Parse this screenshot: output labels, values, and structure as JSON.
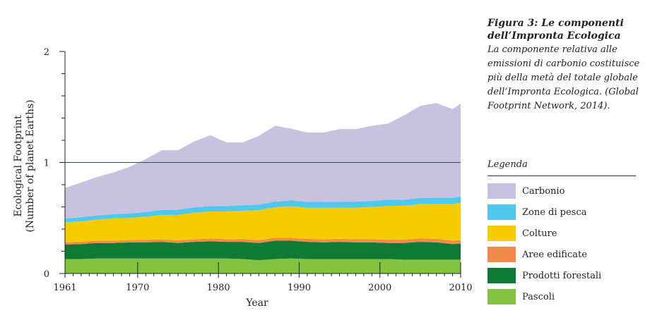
{
  "caption": {
    "title": "Figura 3: Le componenti dell’Impronta Ecologica",
    "text": "La componente relativa alle emissioni di carbonio costituisce più della metà del totale globale dell’Impronta Ecologica. (Global Footprint Network, 2014)."
  },
  "legend": {
    "title": "Legenda",
    "items": [
      {
        "label": "Carbonio",
        "color": "#c6c2e0"
      },
      {
        "label": "Zone di pesca",
        "color": "#4ec8ee"
      },
      {
        "label": "Colture",
        "color": "#f4cc00"
      },
      {
        "label": "Aree edificate",
        "color": "#f28a4c"
      },
      {
        "label": "Prodotti forestali",
        "color": "#0f7a35"
      },
      {
        "label": "Pascoli",
        "color": "#84c341"
      }
    ]
  },
  "chart_data": {
    "type": "area",
    "stacked": true,
    "xlabel": "Year",
    "ylabel": "Ecological Footprint (Number of planet Earths)",
    "xlim": [
      1961,
      2010
    ],
    "ylim": [
      0,
      2
    ],
    "x_ticks": [
      1961,
      1970,
      1980,
      1990,
      2000,
      2010
    ],
    "y_ticks": [
      0,
      1,
      2
    ],
    "reference_line": 1,
    "reference_line_color": "#1c5e3c",
    "x": [
      1961,
      1963,
      1965,
      1967,
      1969,
      1971,
      1973,
      1975,
      1977,
      1979,
      1981,
      1983,
      1985,
      1987,
      1989,
      1991,
      1993,
      1995,
      1997,
      1999,
      2001,
      2003,
      2005,
      2007,
      2009,
      2010
    ],
    "series": [
      {
        "name": "Pascoli",
        "color": "#84c341",
        "values": [
          0.13,
          0.13,
          0.135,
          0.135,
          0.135,
          0.135,
          0.135,
          0.135,
          0.135,
          0.135,
          0.135,
          0.13,
          0.12,
          0.13,
          0.135,
          0.13,
          0.13,
          0.13,
          0.13,
          0.13,
          0.13,
          0.125,
          0.125,
          0.125,
          0.125,
          0.125
        ]
      },
      {
        "name": "Prodotti forestali",
        "color": "#0f7a35",
        "values": [
          0.13,
          0.135,
          0.14,
          0.14,
          0.145,
          0.145,
          0.15,
          0.14,
          0.15,
          0.155,
          0.15,
          0.155,
          0.155,
          0.165,
          0.16,
          0.155,
          0.15,
          0.155,
          0.15,
          0.15,
          0.145,
          0.15,
          0.16,
          0.155,
          0.14,
          0.145
        ]
      },
      {
        "name": "Aree edificate",
        "color": "#f28a4c",
        "values": [
          0.02,
          0.02,
          0.02,
          0.021,
          0.021,
          0.022,
          0.022,
          0.023,
          0.023,
          0.024,
          0.024,
          0.025,
          0.025,
          0.026,
          0.026,
          0.027,
          0.027,
          0.028,
          0.028,
          0.029,
          0.029,
          0.03,
          0.03,
          0.031,
          0.031,
          0.031
        ]
      },
      {
        "name": "Colture",
        "color": "#f4cc00",
        "values": [
          0.18,
          0.185,
          0.19,
          0.2,
          0.2,
          0.21,
          0.22,
          0.23,
          0.24,
          0.245,
          0.25,
          0.255,
          0.27,
          0.275,
          0.285,
          0.28,
          0.285,
          0.28,
          0.285,
          0.29,
          0.305,
          0.305,
          0.31,
          0.315,
          0.33,
          0.335
        ]
      },
      {
        "name": "Zone di pesca",
        "color": "#4ec8ee",
        "values": [
          0.035,
          0.036,
          0.037,
          0.038,
          0.04,
          0.042,
          0.045,
          0.046,
          0.047,
          0.048,
          0.049,
          0.05,
          0.05,
          0.051,
          0.052,
          0.052,
          0.053,
          0.053,
          0.054,
          0.054,
          0.055,
          0.055,
          0.055,
          0.056,
          0.056,
          0.056
        ]
      },
      {
        "name": "Carbonio",
        "color": "#c6c2e0",
        "values": [
          0.275,
          0.314,
          0.348,
          0.376,
          0.419,
          0.476,
          0.538,
          0.536,
          0.595,
          0.638,
          0.572,
          0.565,
          0.62,
          0.683,
          0.647,
          0.626,
          0.625,
          0.654,
          0.653,
          0.677,
          0.686,
          0.76,
          0.83,
          0.853,
          0.798,
          0.838
        ]
      }
    ]
  }
}
